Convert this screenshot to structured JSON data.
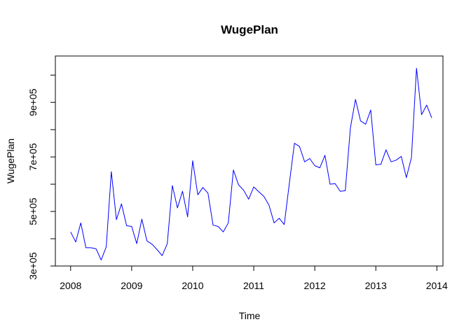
{
  "chart_data": {
    "type": "line",
    "title": "WugePlan",
    "xlabel": "Time",
    "ylabel": "WugePlan",
    "xlim": [
      2007.75,
      2014.1
    ],
    "ylim": [
      300000,
      1070000
    ],
    "x_ticks": [
      2008,
      2009,
      2010,
      2011,
      2012,
      2013,
      2014
    ],
    "x_tick_labels": [
      "2008",
      "2009",
      "2010",
      "2011",
      "2012",
      "2013",
      "2014"
    ],
    "y_ticks": [
      300000,
      400000,
      500000,
      600000,
      700000,
      800000,
      900000,
      1000000
    ],
    "y_tick_labels": [
      "3e+05",
      "",
      "5e+05",
      "",
      "7e+05",
      "",
      "9e+05",
      ""
    ],
    "grid": false,
    "legend": "none",
    "start": 2008,
    "frequency": 12,
    "series": [
      {
        "color": "#0000ff",
        "values": [
          425000,
          388000,
          458000,
          367000,
          367000,
          363000,
          322000,
          370000,
          646000,
          470000,
          528000,
          448000,
          445000,
          382000,
          472000,
          392000,
          380000,
          360000,
          338000,
          382000,
          595000,
          513000,
          574000,
          480000,
          686000,
          561000,
          588000,
          567000,
          450000,
          445000,
          425000,
          458000,
          652000,
          598000,
          578000,
          545000,
          590000,
          572000,
          555000,
          523000,
          458000,
          475000,
          452000,
          603000,
          750000,
          738000,
          682000,
          694000,
          668000,
          660000,
          706000,
          600000,
          602000,
          574000,
          576000,
          806000,
          911000,
          832000,
          820000,
          872000,
          671000,
          673000,
          726000,
          682000,
          688000,
          702000,
          624000,
          697000,
          1025000,
          855000,
          890000,
          843000
        ]
      }
    ]
  }
}
